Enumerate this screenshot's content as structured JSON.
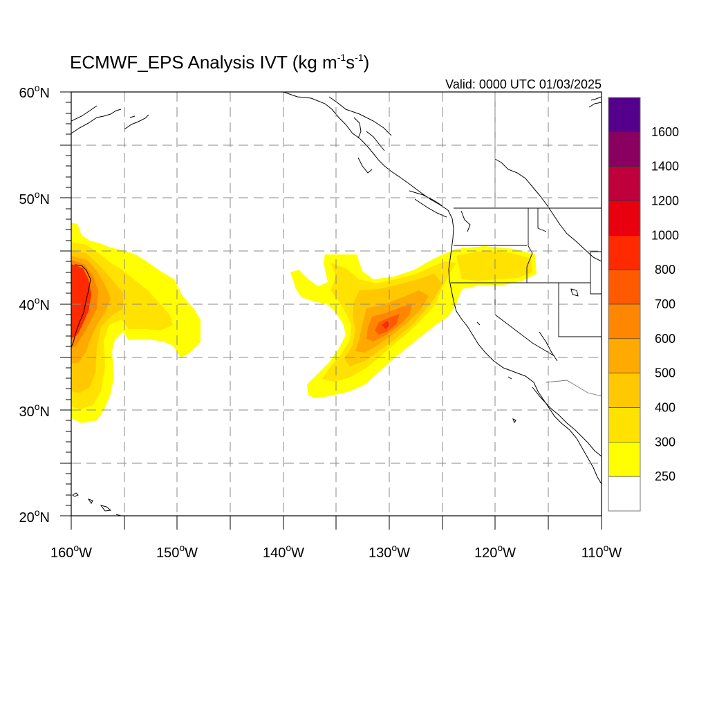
{
  "map": {
    "title": "ECMWF_EPS Analysis IVT (kg m",
    "title_sup1": "-1",
    "title_mid": "s",
    "title_sup2": "-1",
    "title_end": ")",
    "valid": "Valid: 0000 UTC 01/03/2025",
    "lat_range": [
      20,
      60
    ],
    "lon_range": [
      -160,
      -110
    ],
    "lat_labels": [
      {
        "deg": "60",
        "sfx": "N"
      },
      {
        "deg": "50",
        "sfx": "N"
      },
      {
        "deg": "40",
        "sfx": "N"
      },
      {
        "deg": "30",
        "sfx": "N"
      },
      {
        "deg": "20",
        "sfx": "N"
      }
    ],
    "lon_labels": [
      {
        "deg": "160",
        "sfx": "W"
      },
      {
        "deg": "150",
        "sfx": "W"
      },
      {
        "deg": "140",
        "sfx": "W"
      },
      {
        "deg": "130",
        "sfx": "W"
      },
      {
        "deg": "120",
        "sfx": "W"
      },
      {
        "deg": "110",
        "sfx": "W"
      }
    ],
    "colorbar": {
      "labels": [
        "1600",
        "1400",
        "1200",
        "1000",
        "800",
        "700",
        "600",
        "500",
        "400",
        "300",
        "250"
      ],
      "colors": [
        "#55008c",
        "#8a0060",
        "#c0003c",
        "#e8000e",
        "#ff2a00",
        "#ff5a00",
        "#ff8600",
        "#ffaa00",
        "#ffc800",
        "#ffe200",
        "#ffff00",
        "#ffffff"
      ]
    }
  }
}
